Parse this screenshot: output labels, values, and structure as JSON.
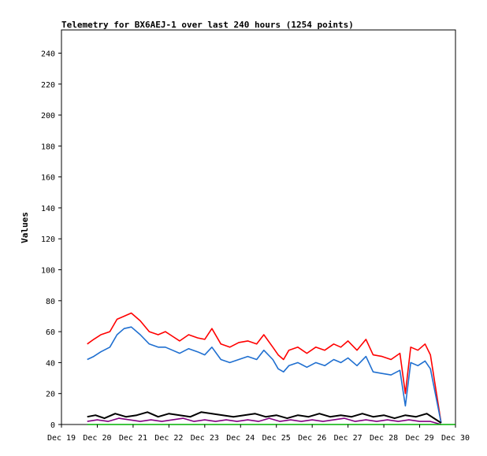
{
  "chart_data": {
    "type": "line",
    "title": "Telemetry for BX6AEJ-1 over last 240 hours (1254 points)",
    "ylabel": "Values",
    "xlabel": "",
    "ylim": [
      0,
      255
    ],
    "xlim": [
      "Dec 19",
      "Dec 30"
    ],
    "x_ticks": [
      "Dec 19",
      "Dec 20",
      "Dec 21",
      "Dec 22",
      "Dec 23",
      "Dec 24",
      "Dec 25",
      "Dec 26",
      "Dec 27",
      "Dec 28",
      "Dec 29",
      "Dec 30"
    ],
    "y_ticks": [
      0,
      20,
      40,
      60,
      80,
      100,
      120,
      140,
      160,
      180,
      200,
      220,
      240
    ],
    "grid": false,
    "legend": "none",
    "series": [
      {
        "color": "#ff0000",
        "x": [
          19.72,
          19.9,
          20.1,
          20.35,
          20.55,
          20.75,
          20.95,
          21.2,
          21.45,
          21.7,
          21.9,
          22.1,
          22.3,
          22.55,
          22.8,
          23.0,
          23.2,
          23.45,
          23.7,
          23.95,
          24.2,
          24.45,
          24.65,
          24.9,
          25.05,
          25.2,
          25.35,
          25.6,
          25.85,
          26.1,
          26.35,
          26.6,
          26.8,
          27.0,
          27.25,
          27.5,
          27.7,
          27.95,
          28.2,
          28.45,
          28.6,
          28.75,
          28.95,
          29.15,
          29.3,
          29.6
        ],
        "values": [
          52,
          55,
          58,
          60,
          68,
          70,
          72,
          67,
          60,
          58,
          60,
          57,
          54,
          58,
          56,
          55,
          62,
          52,
          50,
          53,
          54,
          52,
          58,
          50,
          45,
          42,
          48,
          50,
          46,
          50,
          48,
          52,
          50,
          54,
          48,
          55,
          45,
          44,
          42,
          46,
          20,
          50,
          48,
          52,
          45,
          1
        ]
      },
      {
        "color": "#1f6fd0",
        "x": [
          19.72,
          19.9,
          20.1,
          20.35,
          20.55,
          20.75,
          20.95,
          21.2,
          21.45,
          21.7,
          21.9,
          22.1,
          22.3,
          22.55,
          22.8,
          23.0,
          23.2,
          23.45,
          23.7,
          23.95,
          24.2,
          24.45,
          24.65,
          24.9,
          25.05,
          25.2,
          25.35,
          25.6,
          25.85,
          26.1,
          26.35,
          26.6,
          26.8,
          27.0,
          27.25,
          27.5,
          27.7,
          27.95,
          28.2,
          28.45,
          28.6,
          28.75,
          28.95,
          29.15,
          29.3,
          29.6
        ],
        "values": [
          42,
          44,
          47,
          50,
          58,
          62,
          63,
          58,
          52,
          50,
          50,
          48,
          46,
          49,
          47,
          45,
          50,
          42,
          40,
          42,
          44,
          42,
          48,
          42,
          36,
          34,
          38,
          40,
          37,
          40,
          38,
          42,
          40,
          43,
          38,
          44,
          34,
          33,
          32,
          35,
          12,
          40,
          38,
          41,
          36,
          1
        ]
      },
      {
        "color": "#000000",
        "x": [
          19.72,
          19.95,
          20.2,
          20.5,
          20.8,
          21.1,
          21.4,
          21.7,
          22.0,
          22.3,
          22.6,
          22.9,
          23.2,
          23.5,
          23.8,
          24.1,
          24.4,
          24.7,
          25.0,
          25.3,
          25.6,
          25.9,
          26.2,
          26.5,
          26.8,
          27.1,
          27.4,
          27.7,
          28.0,
          28.3,
          28.6,
          28.9,
          29.2,
          29.6
        ],
        "values": [
          5,
          6,
          4,
          7,
          5,
          6,
          8,
          5,
          7,
          6,
          5,
          8,
          7,
          6,
          5,
          6,
          7,
          5,
          6,
          4,
          6,
          5,
          7,
          5,
          6,
          5,
          7,
          5,
          6,
          4,
          6,
          5,
          7,
          1
        ]
      },
      {
        "color": "#800080",
        "x": [
          19.72,
          20.0,
          20.3,
          20.6,
          20.9,
          21.2,
          21.5,
          21.8,
          22.1,
          22.4,
          22.7,
          23.0,
          23.3,
          23.6,
          23.9,
          24.2,
          24.5,
          24.8,
          25.1,
          25.4,
          25.7,
          26.0,
          26.3,
          26.6,
          26.9,
          27.2,
          27.5,
          27.8,
          28.1,
          28.4,
          28.7,
          29.0,
          29.3,
          29.6
        ],
        "values": [
          2,
          3,
          2,
          4,
          3,
          2,
          3,
          2,
          3,
          4,
          2,
          3,
          2,
          3,
          2,
          3,
          2,
          4,
          2,
          3,
          2,
          3,
          2,
          3,
          4,
          2,
          3,
          2,
          3,
          2,
          3,
          2,
          2,
          0
        ]
      },
      {
        "color": "#00b000",
        "x": [
          19.72,
          29.0,
          29.6,
          30.0
        ],
        "values": [
          0,
          0,
          0,
          0
        ]
      }
    ]
  }
}
